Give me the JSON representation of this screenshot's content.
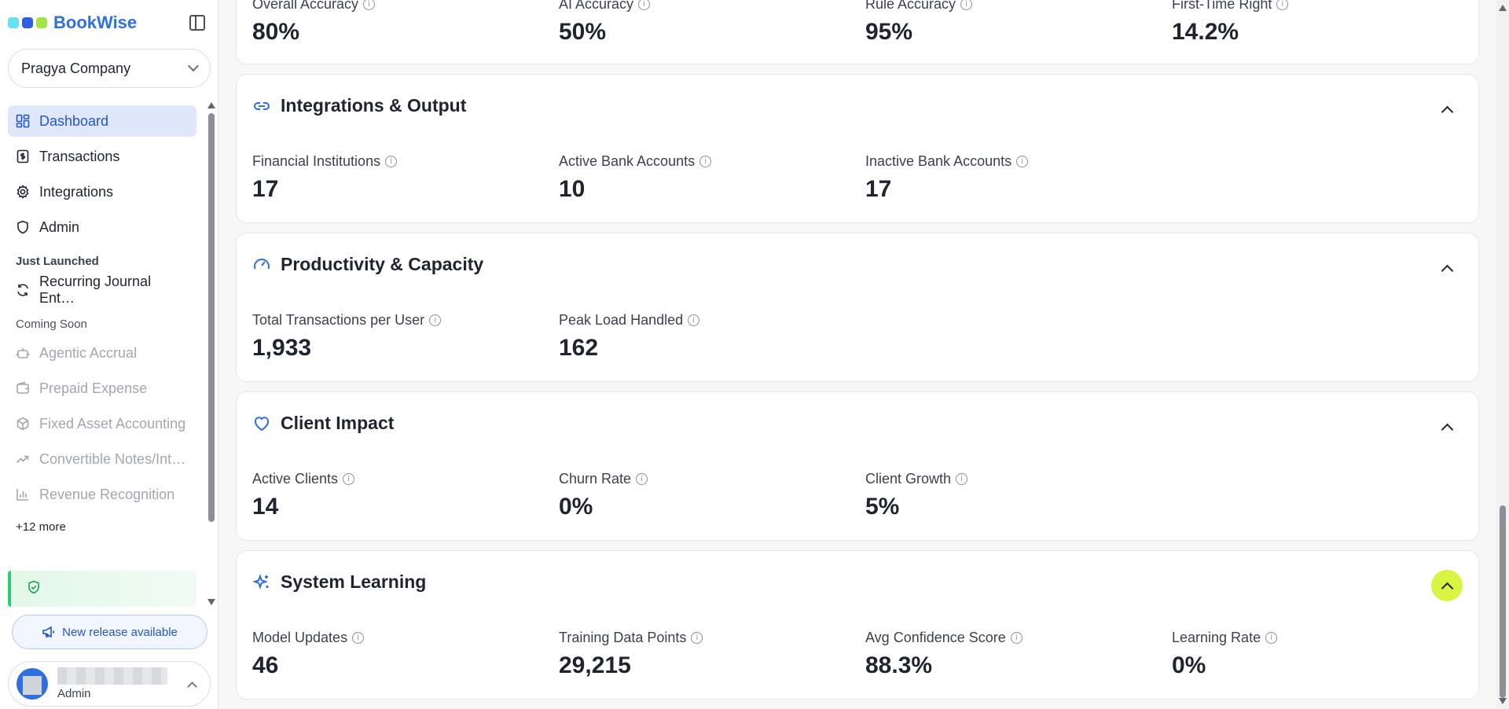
{
  "brand": {
    "name": "BookWise",
    "dot_colors": [
      "#67e0f0",
      "#2f5fe0",
      "#a6e34a"
    ]
  },
  "sidebar": {
    "company": "Pragya Company",
    "nav": [
      {
        "label": "Dashboard",
        "icon": "dashboard-icon",
        "state": "active"
      },
      {
        "label": "Transactions",
        "icon": "dollar-doc-icon",
        "state": "normal"
      },
      {
        "label": "Integrations",
        "icon": "gear-icon",
        "state": "normal"
      },
      {
        "label": "Admin",
        "icon": "shield-icon",
        "state": "normal"
      }
    ],
    "just_launched_heading": "Just Launched",
    "just_launched": [
      {
        "label": "Recurring Journal Ent…",
        "icon": "refresh-icon"
      }
    ],
    "coming_soon_heading": "Coming Soon",
    "coming_soon": [
      {
        "label": "Agentic Accrual",
        "icon": "robot-icon"
      },
      {
        "label": "Prepaid Expense",
        "icon": "wallet-icon"
      },
      {
        "label": "Fixed Asset Accounting",
        "icon": "cube-icon"
      },
      {
        "label": "Convertible Notes/Int…",
        "icon": "trending-icon"
      },
      {
        "label": "Revenue Recognition",
        "icon": "bar-chart-icon"
      }
    ],
    "more_label": "+12 more",
    "release_label": "New release available",
    "user_role": "Admin"
  },
  "sections": {
    "accuracy": {
      "metrics": [
        {
          "label": "Overall Accuracy",
          "value": "80%"
        },
        {
          "label": "AI Accuracy",
          "value": "50%"
        },
        {
          "label": "Rule Accuracy",
          "value": "95%"
        },
        {
          "label": "First-Time Right",
          "value": "14.2%"
        }
      ]
    },
    "integrations": {
      "title": "Integrations & Output",
      "metrics": [
        {
          "label": "Financial Institutions",
          "value": "17"
        },
        {
          "label": "Active Bank Accounts",
          "value": "10"
        },
        {
          "label": "Inactive Bank Accounts",
          "value": "17"
        }
      ]
    },
    "productivity": {
      "title": "Productivity & Capacity",
      "metrics": [
        {
          "label": "Total Transactions per User",
          "value": "1,933"
        },
        {
          "label": "Peak Load Handled",
          "value": "162"
        }
      ]
    },
    "client": {
      "title": "Client Impact",
      "metrics": [
        {
          "label": "Active Clients",
          "value": "14"
        },
        {
          "label": "Churn Rate",
          "value": "0%"
        },
        {
          "label": "Client Growth",
          "value": "5%"
        }
      ]
    },
    "learning": {
      "title": "System Learning",
      "metrics": [
        {
          "label": "Model Updates",
          "value": "46"
        },
        {
          "label": "Training Data Points",
          "value": "29,215"
        },
        {
          "label": "Avg Confidence Score",
          "value": "88.3%"
        },
        {
          "label": "Learning Rate",
          "value": "0%"
        }
      ]
    }
  },
  "colors": {
    "accent": "#2f6fe0",
    "active_nav_bg": "#dfe7fa",
    "highlight_toggle": "#d9f542"
  }
}
